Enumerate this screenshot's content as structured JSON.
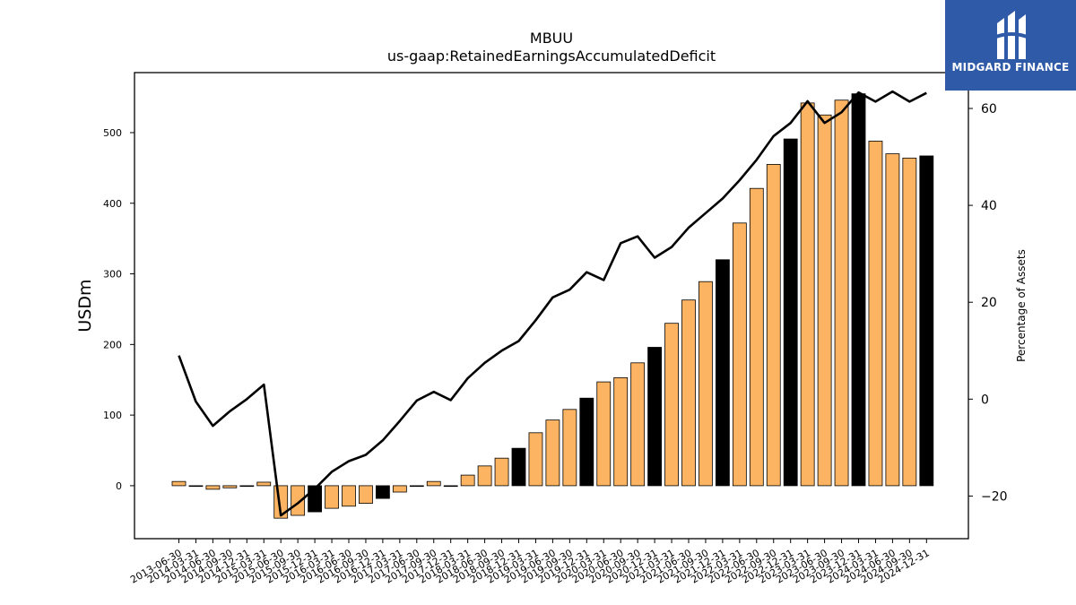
{
  "chart_data": {
    "type": "bar",
    "title": "MBUU",
    "subtitle": "us-gaap:RetainedEarningsAccumulatedDeficit",
    "ylabel": "USDm",
    "y2label": "Percentage of Assets",
    "ylim": [
      -75,
      585
    ],
    "y2lim": [
      -28.8,
      67.4
    ],
    "yticks": [
      0,
      100,
      200,
      300,
      400,
      500
    ],
    "y2ticks": [
      -20,
      0,
      20,
      40,
      60
    ],
    "categories": [
      "2013-06-30",
      "2014-03-31",
      "2014-06-30",
      "2014-09-30",
      "2014-12-31",
      "2015-03-31",
      "2015-06-30",
      "2015-09-30",
      "2015-12-31",
      "2016-03-31",
      "2016-06-30",
      "2016-09-30",
      "2016-12-31",
      "2017-03-31",
      "2017-06-30",
      "2017-09-30",
      "2017-12-31",
      "2018-03-31",
      "2018-06-30",
      "2018-09-30",
      "2018-12-31",
      "2019-03-31",
      "2019-06-30",
      "2019-09-30",
      "2019-12-31",
      "2020-03-31",
      "2020-06-30",
      "2020-09-30",
      "2020-12-31",
      "2021-03-31",
      "2021-06-30",
      "2021-09-30",
      "2021-12-31",
      "2022-03-31",
      "2022-06-30",
      "2022-09-30",
      "2022-12-31",
      "2023-03-31",
      "2023-06-30",
      "2023-09-30",
      "2023-12-31",
      "2024-03-31",
      "2024-06-30",
      "2024-09-30",
      "2024-12-31"
    ],
    "series": [
      {
        "type": "bar",
        "values": [
          6,
          -1,
          -5,
          -3,
          -1,
          5,
          -46,
          -42,
          -37,
          -32,
          -29,
          -25,
          -18,
          -9,
          -1,
          6,
          -1,
          15,
          28,
          39,
          53,
          75,
          93,
          108,
          124,
          147,
          153,
          174,
          196,
          230,
          263,
          289,
          320,
          372,
          421,
          455,
          491,
          542,
          525,
          546,
          555,
          488,
          470,
          464,
          467
        ],
        "highlight": [
          false,
          false,
          false,
          false,
          false,
          false,
          false,
          false,
          true,
          false,
          false,
          false,
          true,
          false,
          false,
          false,
          false,
          false,
          false,
          false,
          true,
          false,
          false,
          false,
          true,
          false,
          false,
          false,
          true,
          false,
          false,
          false,
          true,
          false,
          false,
          false,
          true,
          false,
          false,
          false,
          true,
          false,
          false,
          false,
          true
        ]
      },
      {
        "type": "line",
        "values": [
          9,
          -0.5,
          -5.5,
          -2.5,
          0,
          3,
          -24,
          -21.5,
          -18.5,
          -15,
          -12.8,
          -11.5,
          -8.5,
          -4.5,
          -0.3,
          1.5,
          -0.2,
          4.3,
          7.5,
          10,
          12,
          16.3,
          21,
          22.6,
          26.2,
          24.6,
          32.2,
          33.6,
          29.2,
          31.4,
          35.4,
          38.4,
          41.4,
          45.2,
          49.4,
          54.3,
          57,
          61.5,
          57,
          59.2,
          63.3,
          61.4,
          63.5,
          61.4,
          63.2
        ]
      }
    ],
    "colors": {
      "bar": "#fdb462",
      "bar_highlight": "#000000",
      "line": "#000000",
      "edge": "#000000"
    },
    "legend": "none",
    "grid": false
  },
  "logo": {
    "text": "MIDGARD FINANCE"
  }
}
